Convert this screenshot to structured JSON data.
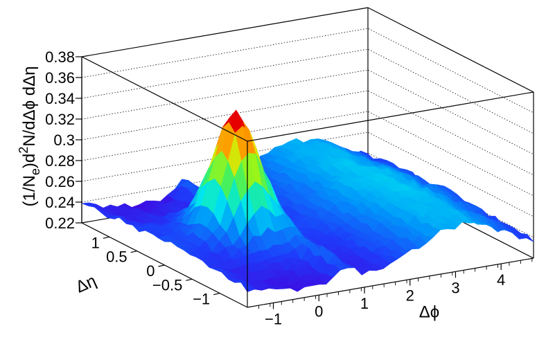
{
  "chart_data": {
    "type": "surface3d",
    "title": "",
    "xlabel": "Δϕ",
    "ylabel": "Δη",
    "zlabel": "(1/N_e)d²N/dΔϕ dΔη",
    "zlabel_parts": {
      "pre": "(1/N",
      "sub": "e",
      "mid": ")d",
      "sup": "2",
      "post": "N/dΔϕ dΔη"
    },
    "xlim": [
      -1.5708,
      4.7124
    ],
    "ylim": [
      -1.5,
      1.5
    ],
    "zlim": [
      0.22,
      0.38
    ],
    "x_ticks": [
      "−1",
      "0",
      "1",
      "2",
      "3",
      "4"
    ],
    "x_tick_values": [
      -1,
      0,
      1,
      2,
      3,
      4
    ],
    "y_ticks": [
      "1",
      "0.5",
      "0",
      "−0.5",
      "−1"
    ],
    "y_tick_values": [
      1,
      0.5,
      0,
      -0.5,
      -1
    ],
    "z_ticks": [
      "0.22",
      "0.24",
      "0.26",
      "0.28",
      "0.3",
      "0.32",
      "0.34",
      "0.36",
      "0.38"
    ],
    "z_tick_values": [
      0.22,
      0.24,
      0.26,
      0.28,
      0.3,
      0.32,
      0.34,
      0.36,
      0.38
    ],
    "grid": true,
    "surface": {
      "baseline": 0.235,
      "near_side_peak": {
        "dphi": 0,
        "deta": 0,
        "height": 0.343
      },
      "away_side_ridge": {
        "dphi": 3.1416,
        "level": 0.27
      }
    }
  }
}
